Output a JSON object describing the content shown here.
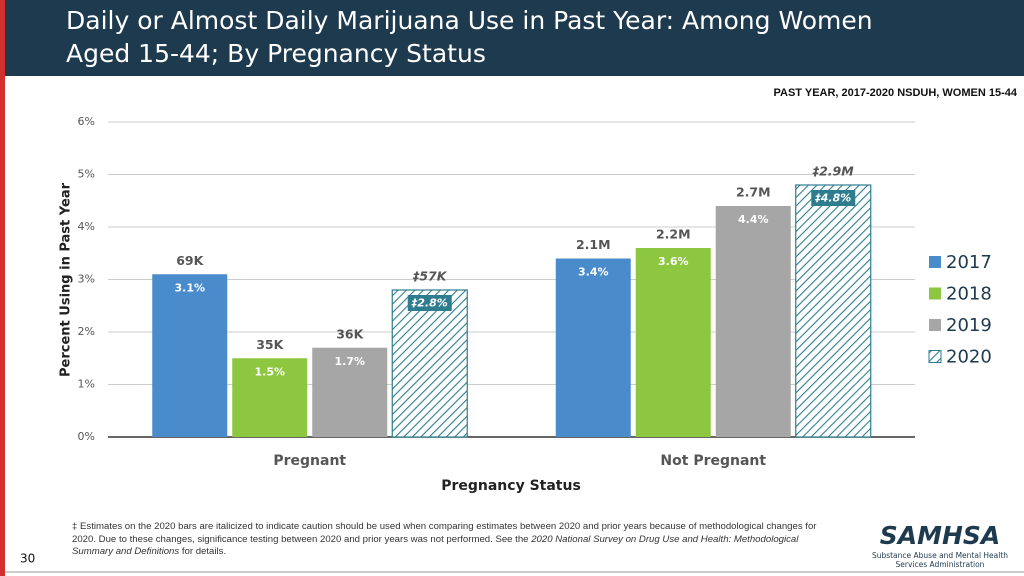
{
  "chart_data": {
    "type": "bar",
    "title": "Daily or Almost Daily Marijuana Use in Past Year: Among Women",
    "title_line2": "Aged 15-44; By Pregnancy Status",
    "subtitle": "PAST YEAR, 2017-2020 NSDUH, WOMEN 15-44",
    "y_label": "Percent Using in Past Year",
    "x_label": "Pregnancy Status",
    "categories": [
      "Pregnant",
      "Not Pregnant"
    ],
    "ylim": [
      0,
      6
    ],
    "yticks": [
      {
        "value": 0,
        "label": "0%"
      },
      {
        "value": 1,
        "label": "1%"
      },
      {
        "value": 2,
        "label": "2%"
      },
      {
        "value": 3,
        "label": "3%"
      },
      {
        "value": 4,
        "label": "4%"
      },
      {
        "value": 5,
        "label": "5%"
      },
      {
        "value": 6,
        "label": "6%"
      }
    ],
    "grid": true,
    "legend": "right",
    "series": [
      {
        "name": "2017",
        "color": "#4a8ccb",
        "values": [
          3.1,
          3.4
        ],
        "value_labels": [
          "3.1%",
          "3.4%"
        ],
        "count_labels": [
          "69K",
          "2.1M"
        ]
      },
      {
        "name": "2018",
        "color": "#8dc63f",
        "values": [
          1.5,
          3.6
        ],
        "value_labels": [
          "1.5%",
          "3.6%"
        ],
        "count_labels": [
          "35K",
          "2.2M"
        ]
      },
      {
        "name": "2019",
        "color": "#a6a6a6",
        "values": [
          1.7,
          4.4
        ],
        "value_labels": [
          "1.7%",
          "4.4%"
        ],
        "count_labels": [
          "36K",
          "2.7M"
        ]
      },
      {
        "name": "2020",
        "color": "#2e7d8f",
        "pattern": "hatch",
        "values": [
          2.8,
          4.8
        ],
        "value_labels": [
          "‡2.8%",
          "‡4.8%"
        ],
        "count_labels": [
          "‡57K",
          "‡2.9M"
        ]
      }
    ]
  },
  "footnote": [
    "‡ Estimates on the 2020 bars are italicized to indicate caution should be used when comparing estimates between 2020 and prior years because of methodological changes for 2020. Due to these changes, significance testing between 2020 and prior years was not performed. See the ",
    "2020 National Survey on Drug Use and Health: Methodological Summary and Definitions",
    " for details."
  ],
  "page_number": "30",
  "logo": {
    "name": "SAMHSA",
    "line1": "Substance Abuse and Mental Health",
    "line2": "Services Administration"
  }
}
